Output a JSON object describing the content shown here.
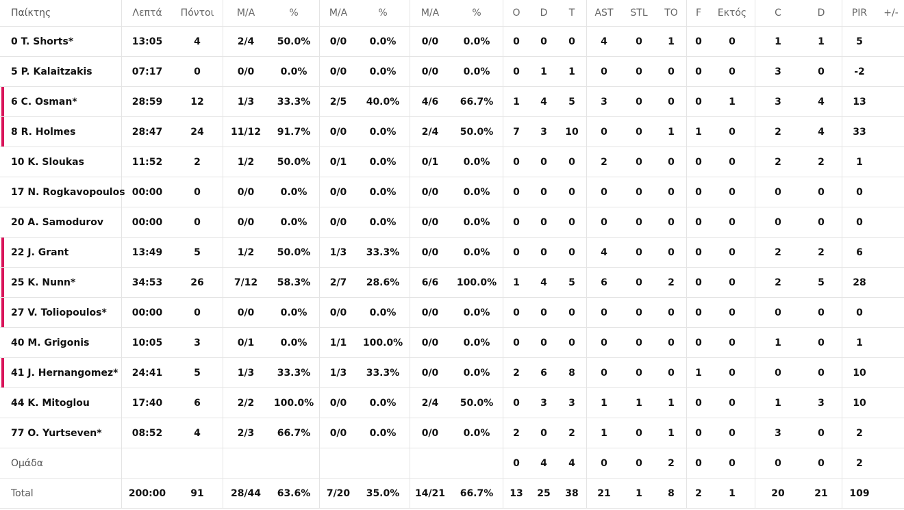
{
  "headers": [
    "Παίκτης",
    "Λεπτά",
    "Πόντοι",
    "Μ/Α",
    "%",
    "Μ/Α",
    "%",
    "Μ/Α",
    "%",
    "O",
    "D",
    "T",
    "AST",
    "STL",
    "TO",
    "F",
    "Εκτός",
    "C",
    "D",
    "PIR",
    "+/-"
  ],
  "players": [
    {
      "label": "0 T. Shorts*",
      "accent": false,
      "stats": [
        "13:05",
        "4",
        "2/4",
        "50.0%",
        "0/0",
        "0.0%",
        "0/0",
        "0.0%",
        "0",
        "0",
        "0",
        "4",
        "0",
        "1",
        "0",
        "0",
        "1",
        "1",
        "5",
        ""
      ]
    },
    {
      "label": "5 P. Kalaitzakis",
      "accent": false,
      "stats": [
        "07:17",
        "0",
        "0/0",
        "0.0%",
        "0/0",
        "0.0%",
        "0/0",
        "0.0%",
        "0",
        "1",
        "1",
        "0",
        "0",
        "0",
        "0",
        "0",
        "3",
        "0",
        "-2",
        ""
      ]
    },
    {
      "label": "6 C. Osman*",
      "accent": true,
      "stats": [
        "28:59",
        "12",
        "1/3",
        "33.3%",
        "2/5",
        "40.0%",
        "4/6",
        "66.7%",
        "1",
        "4",
        "5",
        "3",
        "0",
        "0",
        "0",
        "1",
        "3",
        "4",
        "13",
        ""
      ]
    },
    {
      "label": "8 R. Holmes",
      "accent": true,
      "stats": [
        "28:47",
        "24",
        "11/12",
        "91.7%",
        "0/0",
        "0.0%",
        "2/4",
        "50.0%",
        "7",
        "3",
        "10",
        "0",
        "0",
        "1",
        "1",
        "0",
        "2",
        "4",
        "33",
        ""
      ]
    },
    {
      "label": "10 K. Sloukas",
      "accent": false,
      "stats": [
        "11:52",
        "2",
        "1/2",
        "50.0%",
        "0/1",
        "0.0%",
        "0/1",
        "0.0%",
        "0",
        "0",
        "0",
        "2",
        "0",
        "0",
        "0",
        "0",
        "2",
        "2",
        "1",
        ""
      ]
    },
    {
      "label": "17 N. Rogkavopoulos",
      "accent": false,
      "stats": [
        "00:00",
        "0",
        "0/0",
        "0.0%",
        "0/0",
        "0.0%",
        "0/0",
        "0.0%",
        "0",
        "0",
        "0",
        "0",
        "0",
        "0",
        "0",
        "0",
        "0",
        "0",
        "0",
        ""
      ]
    },
    {
      "label": "20 A. Samodurov",
      "accent": false,
      "stats": [
        "00:00",
        "0",
        "0/0",
        "0.0%",
        "0/0",
        "0.0%",
        "0/0",
        "0.0%",
        "0",
        "0",
        "0",
        "0",
        "0",
        "0",
        "0",
        "0",
        "0",
        "0",
        "0",
        ""
      ]
    },
    {
      "label": "22 J. Grant",
      "accent": true,
      "stats": [
        "13:49",
        "5",
        "1/2",
        "50.0%",
        "1/3",
        "33.3%",
        "0/0",
        "0.0%",
        "0",
        "0",
        "0",
        "4",
        "0",
        "0",
        "0",
        "0",
        "2",
        "2",
        "6",
        ""
      ]
    },
    {
      "label": "25 K. Nunn*",
      "accent": true,
      "stats": [
        "34:53",
        "26",
        "7/12",
        "58.3%",
        "2/7",
        "28.6%",
        "6/6",
        "100.0%",
        "1",
        "4",
        "5",
        "6",
        "0",
        "2",
        "0",
        "0",
        "2",
        "5",
        "28",
        ""
      ]
    },
    {
      "label": "27 V. Toliopoulos*",
      "accent": true,
      "stats": [
        "00:00",
        "0",
        "0/0",
        "0.0%",
        "0/0",
        "0.0%",
        "0/0",
        "0.0%",
        "0",
        "0",
        "0",
        "0",
        "0",
        "0",
        "0",
        "0",
        "0",
        "0",
        "0",
        ""
      ]
    },
    {
      "label": "40 M. Grigonis",
      "accent": false,
      "stats": [
        "10:05",
        "3",
        "0/1",
        "0.0%",
        "1/1",
        "100.0%",
        "0/0",
        "0.0%",
        "0",
        "0",
        "0",
        "0",
        "0",
        "0",
        "0",
        "0",
        "1",
        "0",
        "1",
        ""
      ]
    },
    {
      "label": "41 J. Hernangomez*",
      "accent": true,
      "stats": [
        "24:41",
        "5",
        "1/3",
        "33.3%",
        "1/3",
        "33.3%",
        "0/0",
        "0.0%",
        "2",
        "6",
        "8",
        "0",
        "0",
        "0",
        "1",
        "0",
        "0",
        "0",
        "10",
        ""
      ]
    },
    {
      "label": "44 K. Mitoglou",
      "accent": false,
      "stats": [
        "17:40",
        "6",
        "2/2",
        "100.0%",
        "0/0",
        "0.0%",
        "2/4",
        "50.0%",
        "0",
        "3",
        "3",
        "1",
        "1",
        "1",
        "0",
        "0",
        "1",
        "3",
        "10",
        ""
      ]
    },
    {
      "label": "77 O. Yurtseven*",
      "accent": false,
      "stats": [
        "08:52",
        "4",
        "2/3",
        "66.7%",
        "0/0",
        "0.0%",
        "0/0",
        "0.0%",
        "2",
        "0",
        "2",
        "1",
        "0",
        "1",
        "0",
        "0",
        "3",
        "0",
        "2",
        ""
      ]
    }
  ],
  "team": {
    "label": "Ομάδα",
    "stats": [
      "",
      "",
      "",
      "",
      "",
      "",
      "",
      "",
      "0",
      "4",
      "4",
      "0",
      "0",
      "2",
      "0",
      "0",
      "0",
      "0",
      "2",
      ""
    ]
  },
  "total": {
    "label": "Total",
    "stats": [
      "200:00",
      "91",
      "28/44",
      "63.6%",
      "7/20",
      "35.0%",
      "14/21",
      "66.7%",
      "13",
      "25",
      "38",
      "21",
      "1",
      "8",
      "2",
      "1",
      "20",
      "21",
      "109",
      ""
    ]
  },
  "colors": {
    "accent": "#d9145a",
    "grid": "#e4e4e4"
  }
}
